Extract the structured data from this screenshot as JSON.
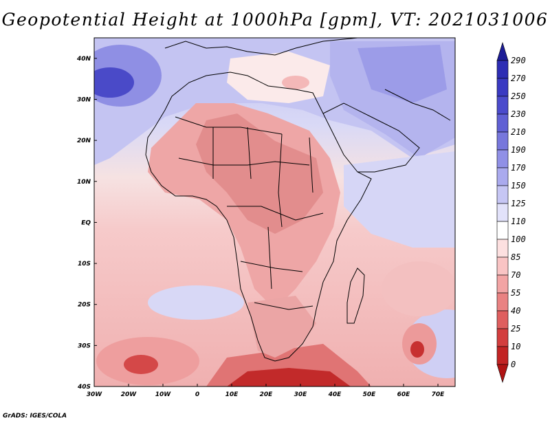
{
  "title": "Geopotential Height at 1000hPa [gpm], VT: 2021031006",
  "credit": "GrADS: IGES/COLA",
  "lat_ticks": [
    "40N",
    "30N",
    "20N",
    "10N",
    "EQ",
    "10S",
    "20S",
    "30S",
    "40S"
  ],
  "lon_ticks": [
    "30W",
    "20W",
    "10W",
    "0",
    "10E",
    "20E",
    "30E",
    "40E",
    "50E",
    "60E",
    "70E"
  ],
  "map_extent": {
    "lon_min": -30,
    "lon_max": 75,
    "lat_min": -40,
    "lat_max": 45
  },
  "colorbar": {
    "levels": [
      "290",
      "270",
      "250",
      "230",
      "210",
      "190",
      "170",
      "150",
      "125",
      "110",
      "100",
      "85",
      "70",
      "55",
      "40",
      "25",
      "10",
      "0"
    ],
    "colors_top_to_bottom": [
      "#1c1c96",
      "#2d2db4",
      "#3a3ac2",
      "#4b4bcc",
      "#6060d4",
      "#7777dc",
      "#9090e6",
      "#aaaaee",
      "#c6c6f4",
      "#e2e2fa",
      "#ffffff",
      "#fde0e0",
      "#f9c4c4",
      "#f2a4a4",
      "#e98282",
      "#df5f5f",
      "#d33e3e",
      "#c22424",
      "#b01414"
    ]
  }
}
